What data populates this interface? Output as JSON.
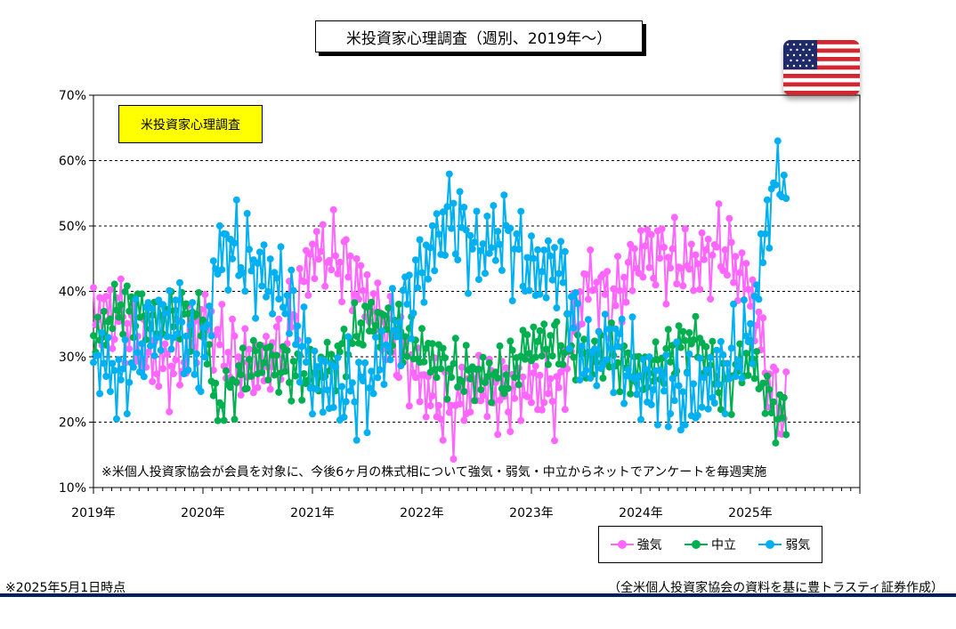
{
  "title": "米投資家心理調査（週別、2019年～）",
  "box_label": "米投資家心理調査",
  "note": "※米個人投資家協会が会員を対象に、今後6ヶ月の株式相について強気・弱気・中立からネットでアンケートを毎週実施",
  "footer_left": "※2025年5月1日時点",
  "footer_right": "（全米個人投資家協会の資料を基に豊トラスティ証券作成）",
  "colors": {
    "bull": "#ff66ff",
    "neutral": "#00b050",
    "bear": "#00b0f0",
    "bottom_bar": "#002060"
  },
  "flag_icon": "us-flag-icon",
  "chart_data": {
    "type": "line",
    "title": "米投資家心理調査（週別、2019年～）",
    "xlabel": "",
    "ylabel": "",
    "ylim": [
      10,
      70
    ],
    "y_ticks": [
      "10%",
      "20%",
      "30%",
      "40%",
      "50%",
      "60%",
      "70%"
    ],
    "x_ticks": [
      "2019年",
      "2020年",
      "2021年",
      "2022年",
      "2023年",
      "2024年",
      "2025年"
    ],
    "x_range": [
      2019.0,
      2026.0
    ],
    "grid": "horizontal dashed",
    "legend": "bottom-right",
    "x_points": [
      2019.0,
      2019.25,
      2019.5,
      2019.75,
      2020.0,
      2020.12,
      2020.25,
      2020.5,
      2020.75,
      2021.0,
      2021.25,
      2021.5,
      2021.75,
      2022.0,
      2022.25,
      2022.5,
      2022.75,
      2023.0,
      2023.25,
      2023.5,
      2023.75,
      2024.0,
      2024.25,
      2024.5,
      2024.75,
      2025.0,
      2025.2,
      2025.33
    ],
    "series": [
      {
        "name": "強気",
        "color": "#ff66ff",
        "values": [
          37,
          36,
          30,
          28,
          36,
          33,
          30,
          28,
          32,
          46,
          45,
          39,
          32,
          26,
          21,
          26,
          24,
          26,
          24,
          42,
          38,
          46,
          45,
          44,
          47,
          40,
          24,
          21
        ]
      },
      {
        "name": "中立",
        "color": "#00b050",
        "values": [
          32,
          38,
          36,
          36,
          36,
          22,
          25,
          30,
          28,
          27,
          30,
          36,
          34,
          31,
          28,
          27,
          27,
          32,
          32,
          30,
          30,
          27,
          30,
          33,
          25,
          30,
          22,
          20
        ]
      },
      {
        "name": "弱気",
        "color": "#00b0f0",
        "values": [
          31,
          26,
          34,
          36,
          28,
          45,
          47,
          43,
          40,
          27,
          25,
          25,
          34,
          43,
          52,
          46,
          49,
          43,
          44,
          29,
          32,
          26,
          25,
          24,
          28,
          33,
          56,
          59
        ]
      }
    ]
  }
}
